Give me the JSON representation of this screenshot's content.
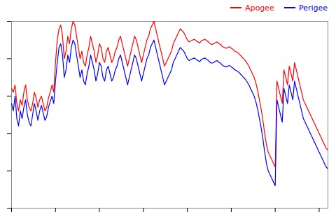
{
  "chart_data": {
    "type": "line",
    "x": [
      0,
      1,
      2,
      3,
      4,
      5,
      6,
      7,
      8,
      9,
      10,
      11,
      12,
      13,
      14,
      15,
      16,
      17,
      18,
      19,
      20,
      21,
      22,
      23,
      24,
      25,
      26,
      27,
      28,
      29,
      30,
      31,
      32,
      33,
      34,
      35,
      36,
      37,
      38,
      39,
      40,
      41,
      42,
      43,
      44,
      45,
      46,
      47,
      48,
      49,
      50,
      51,
      52,
      53,
      54,
      55,
      56,
      57,
      58,
      59,
      60,
      61,
      62,
      63,
      64,
      65,
      66,
      67,
      68,
      69,
      70,
      71,
      72,
      73,
      74,
      75,
      76,
      77,
      78,
      79,
      80,
      81,
      82,
      83,
      84,
      85,
      86,
      87,
      88,
      89,
      90,
      91,
      92,
      93,
      94,
      95,
      96,
      97,
      98,
      99,
      100,
      101,
      102,
      103,
      104,
      105,
      106,
      107,
      108,
      109,
      110,
      111,
      112,
      113,
      114,
      115,
      116,
      117,
      118,
      119,
      120,
      121,
      122,
      123,
      124,
      125,
      126,
      127,
      128,
      129,
      130,
      131,
      132,
      133,
      134,
      135,
      136,
      137,
      138,
      139,
      140,
      141,
      142,
      143,
      144,
      145,
      146,
      147,
      148,
      149,
      150,
      151,
      152,
      153,
      154,
      155,
      156,
      157,
      158,
      159,
      160,
      161,
      162,
      163,
      164,
      165,
      166,
      167,
      168,
      169,
      170,
      171,
      172,
      173,
      174,
      175,
      176,
      177,
      178,
      179,
      180
    ],
    "series": [
      {
        "name": "Apogee",
        "color": "#ff0000",
        "values": [
          320,
          310,
          330,
          280,
          260,
          290,
          275,
          310,
          330,
          290,
          270,
          260,
          280,
          310,
          295,
          270,
          290,
          300,
          280,
          260,
          270,
          295,
          310,
          330,
          310,
          390,
          450,
          480,
          490,
          460,
          400,
          420,
          460,
          440,
          480,
          500,
          490,
          460,
          430,
          400,
          420,
          390,
          380,
          410,
          430,
          460,
          440,
          420,
          390,
          410,
          440,
          430,
          400,
          390,
          420,
          430,
          410,
          390,
          400,
          420,
          430,
          450,
          460,
          440,
          420,
          400,
          380,
          400,
          420,
          440,
          460,
          450,
          430,
          410,
          390,
          410,
          430,
          450,
          460,
          480,
          490,
          500,
          480,
          460,
          440,
          420,
          400,
          380,
          390,
          400,
          410,
          420,
          440,
          450,
          460,
          470,
          480,
          475,
          470,
          460,
          450,
          445,
          448,
          450,
          452,
          448,
          445,
          442,
          448,
          450,
          452,
          448,
          445,
          440,
          438,
          440,
          443,
          445,
          440,
          438,
          432,
          430,
          428,
          430,
          432,
          428,
          425,
          420,
          418,
          415,
          410,
          405,
          400,
          395,
          388,
          380,
          370,
          360,
          350,
          335,
          315,
          290,
          265,
          235,
          200,
          170,
          150,
          140,
          130,
          120,
          110,
          340,
          320,
          300,
          280,
          370,
          350,
          330,
          380,
          360,
          340,
          390,
          370,
          350,
          330,
          310,
          290,
          280,
          270,
          260,
          250,
          240,
          230,
          220,
          210,
          200,
          190,
          180,
          170,
          160,
          155
        ]
      },
      {
        "name": "Perigee",
        "color": "#0000ff",
        "values": [
          280,
          260,
          300,
          240,
          220,
          260,
          240,
          270,
          290,
          250,
          230,
          220,
          250,
          280,
          260,
          235,
          260,
          275,
          255,
          235,
          245,
          270,
          285,
          300,
          280,
          340,
          390,
          430,
          440,
          410,
          350,
          370,
          410,
          390,
          430,
          450,
          440,
          410,
          380,
          350,
          370,
          340,
          330,
          360,
          380,
          410,
          390,
          370,
          340,
          360,
          390,
          380,
          350,
          340,
          370,
          380,
          360,
          340,
          350,
          370,
          380,
          400,
          410,
          390,
          370,
          350,
          330,
          350,
          370,
          390,
          410,
          400,
          380,
          360,
          340,
          360,
          380,
          400,
          410,
          430,
          440,
          450,
          430,
          410,
          390,
          370,
          350,
          330,
          340,
          350,
          360,
          370,
          390,
          400,
          410,
          420,
          430,
          425,
          420,
          410,
          400,
          395,
          398,
          400,
          402,
          398,
          395,
          392,
          398,
          400,
          402,
          398,
          395,
          390,
          388,
          390,
          393,
          395,
          390,
          388,
          382,
          380,
          378,
          380,
          382,
          378,
          375,
          370,
          368,
          365,
          360,
          355,
          350,
          345,
          338,
          330,
          320,
          310,
          300,
          285,
          265,
          240,
          215,
          185,
          150,
          120,
          100,
          90,
          80,
          70,
          60,
          290,
          270,
          250,
          230,
          320,
          300,
          280,
          330,
          310,
          290,
          340,
          320,
          300,
          280,
          260,
          240,
          230,
          220,
          210,
          200,
          190,
          180,
          170,
          160,
          150,
          140,
          130,
          120,
          110,
          105
        ]
      }
    ],
    "xlim": [
      0,
      180
    ],
    "xticks": [
      0,
      25,
      50,
      75,
      100,
      125,
      150,
      175
    ],
    "ylim": [
      0,
      500
    ],
    "yticks": [
      0,
      100,
      200,
      300,
      400,
      500
    ],
    "grid": false,
    "legend": "upper right",
    "tick_labels": false
  }
}
